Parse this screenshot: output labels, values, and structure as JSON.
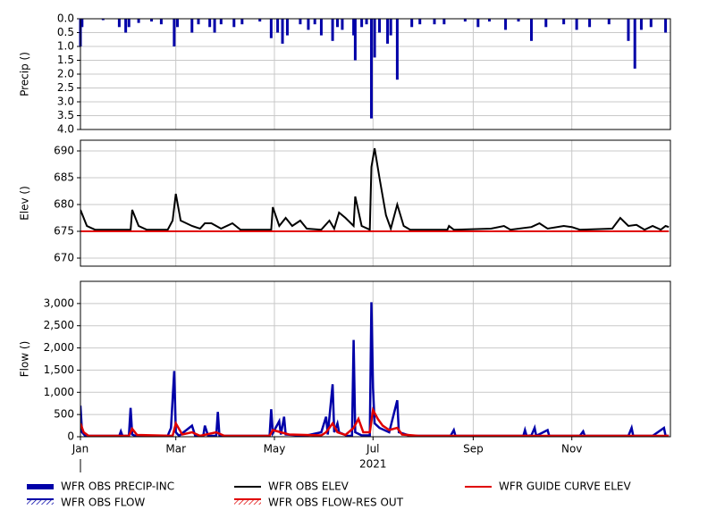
{
  "chart_data": [
    {
      "type": "bar",
      "ylabel": "Precip ()",
      "xlim": [
        1,
        366
      ],
      "xticks": [
        1,
        60,
        121,
        182,
        244,
        305
      ],
      "ylim": [
        0,
        4
      ],
      "y_inverted": true,
      "grid": true,
      "yticks": [
        {
          "value": 0,
          "label": "0.0"
        },
        {
          "value": 0.5,
          "label": "0.5"
        },
        {
          "value": 1,
          "label": "1.0"
        },
        {
          "value": 1.5,
          "label": "1.5"
        },
        {
          "value": 2,
          "label": "2.0"
        },
        {
          "value": 2.5,
          "label": "2.5"
        },
        {
          "value": 3,
          "label": "3.0"
        },
        {
          "value": 3.5,
          "label": "3.5"
        },
        {
          "value": 4,
          "label": "4.0"
        }
      ],
      "series": [
        {
          "name": "WFR OBS PRECIP-INC",
          "color": "#0000a8",
          "x": [
            1,
            2,
            15,
            25,
            29,
            31,
            37,
            45,
            51,
            59,
            61,
            70,
            74,
            81,
            84,
            88,
            96,
            101,
            112,
            119,
            123,
            126,
            129,
            137,
            142,
            146,
            150,
            157,
            160,
            163,
            170,
            171,
            175,
            178,
            181,
            183,
            186,
            191,
            193,
            197,
            206,
            211,
            220,
            226,
            239,
            247,
            254,
            264,
            272,
            280,
            289,
            300,
            308,
            316,
            328,
            340,
            344,
            348,
            354,
            363
          ],
          "values": [
            1.0,
            0.3,
            0.05,
            0.3,
            0.5,
            0.3,
            0.15,
            0.1,
            0.2,
            1.0,
            0.3,
            0.5,
            0.2,
            0.3,
            0.5,
            0.2,
            0.3,
            0.2,
            0.1,
            0.7,
            0.5,
            0.9,
            0.6,
            0.2,
            0.4,
            0.2,
            0.6,
            0.8,
            0.3,
            0.4,
            0.6,
            1.5,
            0.3,
            0.2,
            3.6,
            1.4,
            0.5,
            0.9,
            0.6,
            2.2,
            0.3,
            0.2,
            0.2,
            0.2,
            0.1,
            0.3,
            0.1,
            0.4,
            0.1,
            0.8,
            0.3,
            0.2,
            0.4,
            0.3,
            0.2,
            0.8,
            1.8,
            0.4,
            0.3,
            0.5
          ]
        }
      ]
    },
    {
      "type": "line",
      "ylabel": "Elev ()",
      "xlim": [
        1,
        366
      ],
      "xticks": [
        1,
        60,
        121,
        182,
        244,
        305
      ],
      "ylim": [
        668.5,
        692
      ],
      "yticks": [
        670,
        675,
        680,
        685,
        690
      ],
      "grid": true,
      "series": [
        {
          "name": "WFR OBS ELEV",
          "color": "#000000",
          "x": [
            1,
            5,
            10,
            32,
            33,
            37,
            42,
            55,
            58,
            60,
            63,
            70,
            75,
            78,
            82,
            88,
            95,
            100,
            119,
            120,
            124,
            128,
            132,
            137,
            141,
            150,
            155,
            158,
            161,
            165,
            170,
            171,
            175,
            180,
            181,
            183,
            186,
            190,
            193,
            197,
            201,
            205,
            228,
            229,
            232,
            255,
            263,
            267,
            280,
            285,
            290,
            300,
            305,
            310,
            330,
            335,
            340,
            345,
            350,
            355,
            360,
            363,
            365
          ],
          "values": [
            679,
            676,
            675.3,
            675.3,
            679,
            676,
            675.3,
            675.3,
            677,
            682,
            677,
            676,
            675.5,
            676.5,
            676.5,
            675.5,
            676.5,
            675.3,
            675.3,
            679.5,
            676,
            677.5,
            676,
            677,
            675.5,
            675.3,
            677,
            675.5,
            678.5,
            677.5,
            676,
            681.5,
            676,
            675.3,
            687,
            690.5,
            685,
            678,
            675.5,
            680,
            676,
            675.3,
            675.3,
            676,
            675.3,
            675.5,
            676,
            675.3,
            675.8,
            676.5,
            675.5,
            676,
            675.8,
            675.3,
            675.5,
            677.5,
            676,
            676.2,
            675.3,
            676,
            675.3,
            676,
            675.8
          ]
        },
        {
          "name": "WFR GUIDE CURVE ELEV",
          "color": "#e00000",
          "x": [
            1,
            365
          ],
          "values": [
            675,
            675
          ]
        }
      ]
    },
    {
      "type": "line",
      "ylabel": "Flow ()",
      "xlabel": "2021",
      "xlim": [
        1,
        366
      ],
      "xticks": [
        {
          "value": 1,
          "label": "Jan"
        },
        {
          "value": 60,
          "label": "Mar"
        },
        {
          "value": 121,
          "label": "May"
        },
        {
          "value": 182,
          "label": "Jul"
        },
        {
          "value": 244,
          "label": "Sep"
        },
        {
          "value": 305,
          "label": "Nov"
        }
      ],
      "ylim": [
        0,
        3500
      ],
      "grid": true,
      "yticks": [
        0,
        500,
        {
          "value": 1000,
          "label": "1,000"
        },
        {
          "value": 1500,
          "label": "1,500"
        },
        {
          "value": 2000,
          "label": "2,000"
        },
        {
          "value": 2500,
          "label": "2,500"
        },
        {
          "value": 3000,
          "label": "3,000"
        }
      ],
      "series": [
        {
          "name": "WFR OBS FLOW",
          "color": "#0000a8",
          "x": [
            1,
            2,
            4,
            25,
            26,
            27,
            31,
            32,
            33,
            35,
            55,
            57,
            59,
            60,
            62,
            70,
            72,
            77,
            78,
            80,
            85,
            86,
            87,
            118,
            119,
            120,
            124,
            125,
            127,
            128,
            140,
            150,
            153,
            154,
            157,
            158,
            160,
            161,
            166,
            169,
            170,
            171,
            175,
            180,
            181,
            182,
            183,
            186,
            192,
            197,
            198,
            205,
            230,
            232,
            233,
            275,
            276,
            277,
            280,
            282,
            283,
            290,
            291,
            310,
            312,
            313,
            340,
            342,
            343,
            355,
            362,
            363,
            365
          ],
          "values": [
            700,
            100,
            20,
            20,
            120,
            20,
            20,
            650,
            50,
            20,
            20,
            200,
            1480,
            100,
            20,
            250,
            20,
            20,
            250,
            20,
            20,
            560,
            20,
            20,
            620,
            80,
            350,
            50,
            450,
            50,
            20,
            100,
            450,
            50,
            1180,
            100,
            300,
            100,
            20,
            20,
            2180,
            100,
            30,
            30,
            3030,
            1100,
            300,
            200,
            100,
            820,
            100,
            20,
            20,
            150,
            20,
            20,
            150,
            20,
            30,
            200,
            20,
            150,
            20,
            20,
            120,
            20,
            20,
            200,
            20,
            20,
            200,
            20,
            20
          ]
        },
        {
          "name": "WFR OBS FLOW-RES OUT",
          "color": "#e00000",
          "x": [
            1,
            3,
            6,
            31,
            33,
            36,
            58,
            60,
            64,
            70,
            75,
            85,
            90,
            118,
            120,
            125,
            130,
            150,
            153,
            157,
            160,
            165,
            170,
            173,
            176,
            180,
            182,
            185,
            188,
            192,
            197,
            200,
            210,
            365
          ],
          "values": [
            300,
            100,
            20,
            20,
            180,
            40,
            20,
            300,
            50,
            100,
            20,
            100,
            20,
            20,
            150,
            100,
            50,
            30,
            100,
            300,
            100,
            40,
            200,
            400,
            100,
            100,
            600,
            400,
            250,
            150,
            200,
            50,
            20,
            20
          ]
        }
      ]
    }
  ]
}
